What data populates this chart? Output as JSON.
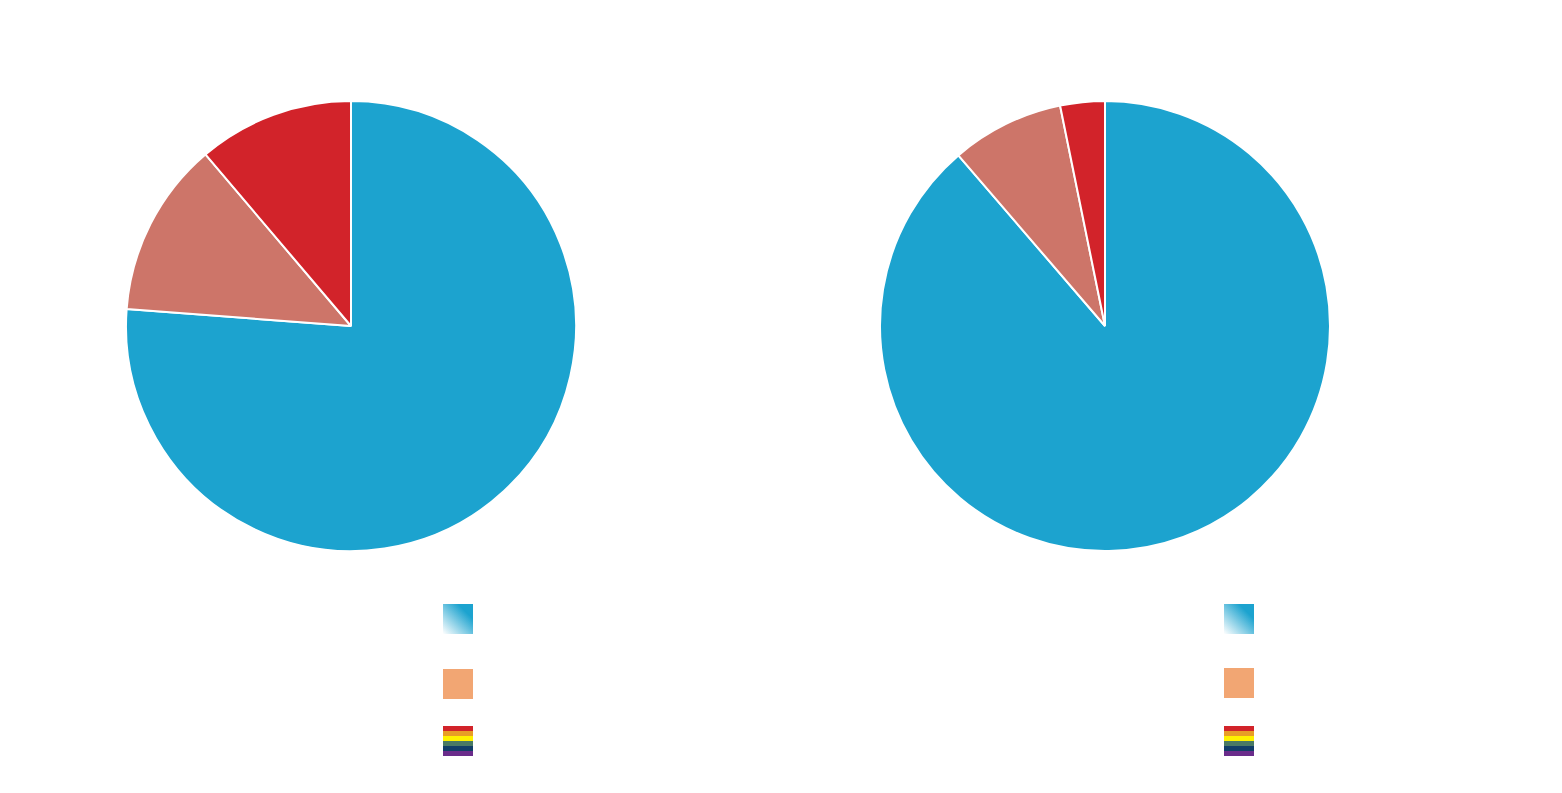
{
  "chart_data": [
    {
      "type": "pie",
      "categories": [
        null,
        null,
        null
      ],
      "values": [
        76.2,
        12.6,
        11.2
      ],
      "colors": [
        "#1ca3cf",
        "#cd7569",
        "#d2232a"
      ]
    },
    {
      "type": "pie",
      "categories": [
        null,
        null,
        null
      ],
      "values": [
        88.7,
        8.1,
        3.2
      ],
      "colors": [
        "#1ca3cf",
        "#cd7569",
        "#d2232a"
      ]
    }
  ]
}
